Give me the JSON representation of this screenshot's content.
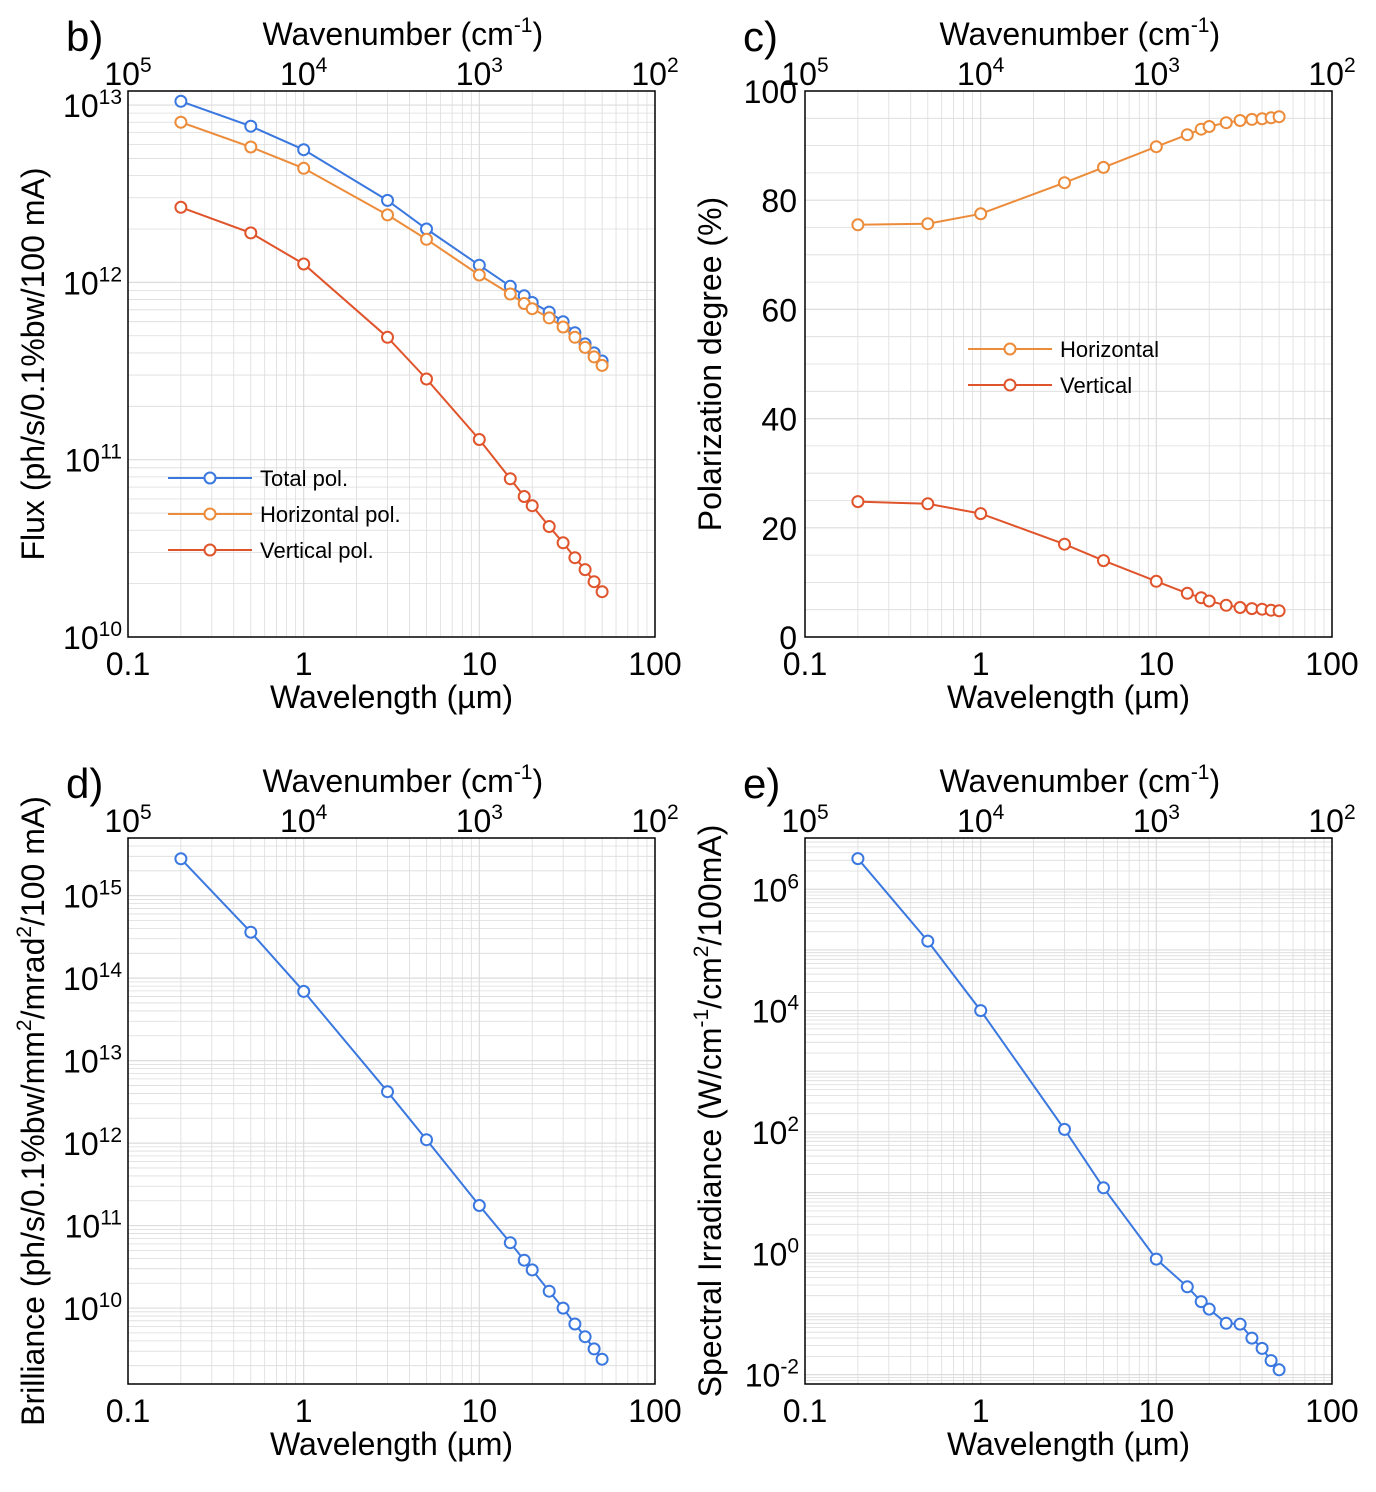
{
  "figure": {
    "background": "#ffffff",
    "grid_color": "#dcdcdc",
    "frame_color": "#000000"
  },
  "chart_data": [
    {
      "id": "b",
      "panel_label": "b)",
      "type": "line",
      "xscale": "log",
      "yscale": "log",
      "xlabel": "Wavelength (µm)",
      "ylabel": "Flux (ph/s/0.1%bw/100 mA)",
      "top_axis": {
        "label_base": "Wavenumber (cm",
        "label_sup": "-1",
        "label_end": ")",
        "ticks": [
          "10^5",
          "10^4",
          "10^3",
          "10^2"
        ]
      },
      "xlim": [
        0.1,
        100
      ],
      "ylim": [
        10000000000.0,
        12000000000000.0
      ],
      "xticks": [
        {
          "v": 0.1,
          "t": "0.1"
        },
        {
          "v": 1,
          "t": "1"
        },
        {
          "v": 10,
          "t": "10"
        },
        {
          "v": 100,
          "t": "100"
        }
      ],
      "yticks": [
        {
          "v": 10000000000.0,
          "base": "10",
          "exp": "10"
        },
        {
          "v": 100000000000.0,
          "base": "10",
          "exp": "11"
        },
        {
          "v": 1000000000000.0,
          "base": "10",
          "exp": "12"
        },
        {
          "v": 10000000000000.0,
          "base": "10",
          "exp": "13"
        }
      ],
      "x": [
        0.2,
        0.5,
        1,
        3,
        5,
        10,
        15,
        18,
        20,
        25,
        30,
        35,
        40,
        45,
        50
      ],
      "series": [
        {
          "name": "Total pol.",
          "color": "#3a78e0",
          "values": [
            10500000000000.0,
            7600000000000.0,
            5600000000000.0,
            2900000000000.0,
            2000000000000.0,
            1250000000000.0,
            950000000000.0,
            840000000000.0,
            770000000000.0,
            680000000000.0,
            600000000000.0,
            520000000000.0,
            450000000000.0,
            400000000000.0,
            360000000000.0
          ]
        },
        {
          "name": "Horizontal pol.",
          "color": "#ec8c3a",
          "values": [
            8000000000000.0,
            5800000000000.0,
            4400000000000.0,
            2400000000000.0,
            1750000000000.0,
            1100000000000.0,
            860000000000.0,
            760000000000.0,
            710000000000.0,
            630000000000.0,
            560000000000.0,
            490000000000.0,
            430000000000.0,
            380000000000.0,
            340000000000.0
          ]
        },
        {
          "name": "Vertical pol.",
          "color": "#e0542c",
          "values": [
            2650000000000.0,
            1900000000000.0,
            1270000000000.0,
            490000000000.0,
            285000000000.0,
            130000000000.0,
            78000000000.0,
            62000000000.0,
            55000000000.0,
            42000000000.0,
            34000000000.0,
            28000000000.0,
            24000000000.0,
            20500000000.0,
            18000000000.0
          ]
        }
      ],
      "legend": {
        "position": "lower-left"
      }
    },
    {
      "id": "c",
      "panel_label": "c)",
      "type": "line",
      "xscale": "log",
      "yscale": "linear",
      "xlabel": "Wavelength (µm)",
      "ylabel": "Polarization degree (%)",
      "top_axis": {
        "label_base": "Wavenumber (cm",
        "label_sup": "-1",
        "label_end": ")",
        "ticks": [
          "10^5",
          "10^4",
          "10^3",
          "10^2"
        ]
      },
      "xlim": [
        0.1,
        100
      ],
      "ylim": [
        0,
        100
      ],
      "xticks": [
        {
          "v": 0.1,
          "t": "0.1"
        },
        {
          "v": 1,
          "t": "1"
        },
        {
          "v": 10,
          "t": "10"
        },
        {
          "v": 100,
          "t": "100"
        }
      ],
      "yticks": [
        {
          "v": 0,
          "t": "0"
        },
        {
          "v": 20,
          "t": "20"
        },
        {
          "v": 40,
          "t": "40"
        },
        {
          "v": 60,
          "t": "60"
        },
        {
          "v": 80,
          "t": "80"
        },
        {
          "v": 100,
          "t": "100"
        }
      ],
      "x": [
        0.2,
        0.5,
        1,
        3,
        5,
        10,
        15,
        18,
        20,
        25,
        30,
        35,
        40,
        45,
        50
      ],
      "series": [
        {
          "name": "Horizontal",
          "color": "#ec8c3a",
          "values": [
            75.5,
            75.7,
            77.5,
            83.2,
            86.0,
            89.8,
            92.0,
            93.0,
            93.5,
            94.2,
            94.6,
            94.8,
            94.9,
            95.1,
            95.3
          ]
        },
        {
          "name": "Vertical",
          "color": "#e0542c",
          "values": [
            24.8,
            24.4,
            22.6,
            17.0,
            14.0,
            10.2,
            8.0,
            7.2,
            6.6,
            5.8,
            5.4,
            5.2,
            5.1,
            4.9,
            4.8
          ]
        }
      ],
      "legend": {
        "position": "center-left"
      }
    },
    {
      "id": "d",
      "panel_label": "d)",
      "type": "line",
      "xscale": "log",
      "yscale": "log",
      "xlabel": "Wavelength (µm)",
      "ylabel_base": "Brilliance (ph/s/0.1%bw/mm",
      "ylabel_sup1": "2",
      "ylabel_mid": "/mrad",
      "ylabel_sup2": "2",
      "ylabel_end": "/100 mA)",
      "top_axis": {
        "label_base": "Wavenumber (cm",
        "label_sup": "-1",
        "label_end": ")",
        "ticks": [
          "10^5",
          "10^4",
          "10^3",
          "10^2"
        ]
      },
      "xlim": [
        0.1,
        100
      ],
      "ylim": [
        1200000000.0,
        5000000000000000.0
      ],
      "xticks": [
        {
          "v": 0.1,
          "t": "0.1"
        },
        {
          "v": 1,
          "t": "1"
        },
        {
          "v": 10,
          "t": "10"
        },
        {
          "v": 100,
          "t": "100"
        }
      ],
      "yticks": [
        {
          "v": 10000000000.0,
          "base": "10",
          "exp": "10"
        },
        {
          "v": 100000000000.0,
          "base": "10",
          "exp": "11"
        },
        {
          "v": 1000000000000.0,
          "base": "10",
          "exp": "12"
        },
        {
          "v": 10000000000000.0,
          "base": "10",
          "exp": "13"
        },
        {
          "v": 100000000000000.0,
          "base": "10",
          "exp": "14"
        },
        {
          "v": 1000000000000000.0,
          "base": "10",
          "exp": "15"
        }
      ],
      "x": [
        0.2,
        0.5,
        1,
        3,
        5,
        10,
        15,
        18,
        20,
        25,
        30,
        35,
        40,
        45,
        50
      ],
      "series": [
        {
          "name": "Brilliance",
          "color": "#3a78e0",
          "values": [
            2800000000000000.0,
            360000000000000.0,
            69000000000000.0,
            4200000000000.0,
            1100000000000.0,
            175000000000.0,
            62000000000.0,
            38000000000.0,
            29000000000.0,
            16000000000.0,
            10000000000.0,
            6400000000.0,
            4500000000.0,
            3200000000.0,
            2400000000.0
          ]
        }
      ]
    },
    {
      "id": "e",
      "panel_label": "e)",
      "type": "line",
      "xscale": "log",
      "yscale": "log",
      "xlabel": "Wavelength (µm)",
      "ylabel_base": "Spectral Irradiance (W/cm",
      "ylabel_sup1": "-1",
      "ylabel_mid": "/cm",
      "ylabel_sup2": "2",
      "ylabel_end": "/100mA)",
      "top_axis": {
        "label_base": "Wavenumber (cm",
        "label_sup": "-1",
        "label_end": ")",
        "ticks": [
          "10^5",
          "10^4",
          "10^3",
          "10^2"
        ]
      },
      "xlim": [
        0.1,
        100
      ],
      "ylim": [
        0.007,
        7000000.0
      ],
      "xticks": [
        {
          "v": 0.1,
          "t": "0.1"
        },
        {
          "v": 1,
          "t": "1"
        },
        {
          "v": 10,
          "t": "10"
        },
        {
          "v": 100,
          "t": "100"
        }
      ],
      "yticks": [
        {
          "v": 0.01,
          "base": "10",
          "exp": "-2"
        },
        {
          "v": 1,
          "base": "10",
          "exp": "0"
        },
        {
          "v": 100,
          "base": "10",
          "exp": "2"
        },
        {
          "v": 10000,
          "base": "10",
          "exp": "4"
        },
        {
          "v": 1000000,
          "base": "10",
          "exp": "6"
        }
      ],
      "x": [
        0.2,
        0.5,
        1,
        3,
        5,
        10,
        15,
        18,
        20,
        25,
        30,
        35,
        40,
        45,
        50
      ],
      "series": [
        {
          "name": "Spectral Irradiance",
          "color": "#3a78e0",
          "values": [
            3200000.0,
            140000.0,
            10000.0,
            110,
            12,
            0.8,
            0.28,
            0.16,
            0.12,
            0.07,
            0.068,
            0.04,
            0.027,
            0.017,
            0.012
          ]
        }
      ]
    }
  ]
}
